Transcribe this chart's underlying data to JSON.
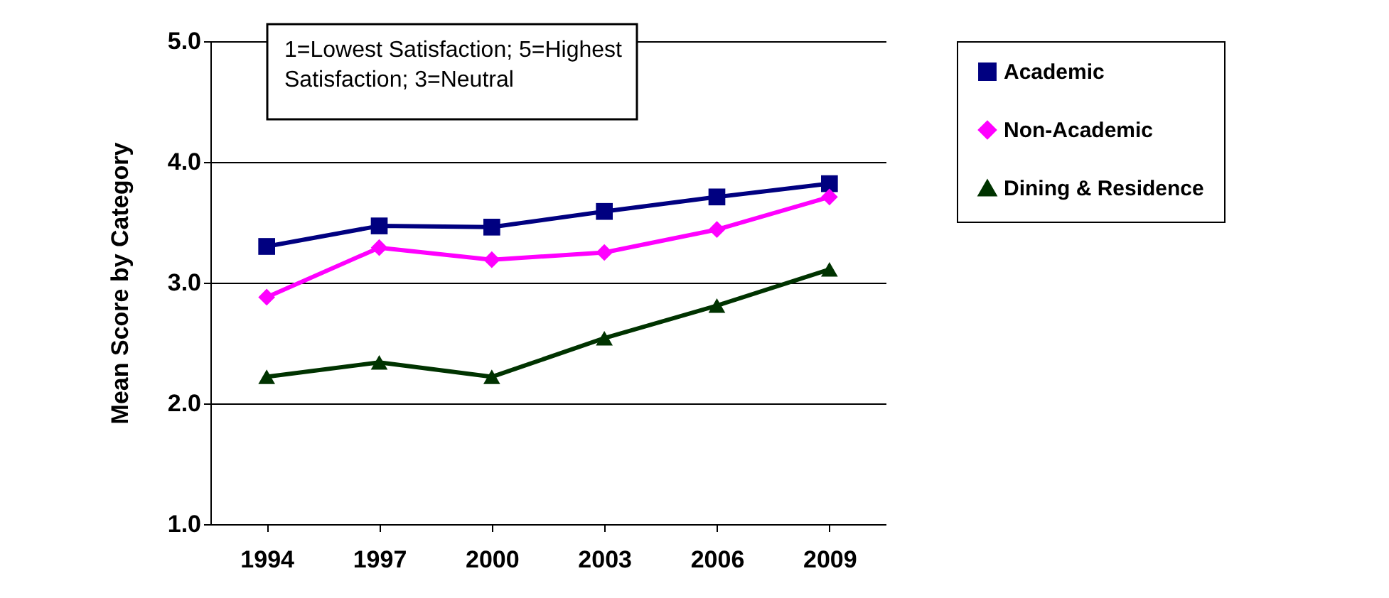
{
  "chart_data": {
    "type": "line",
    "ylabel": "Mean Score by Category",
    "categories": [
      "1994",
      "1997",
      "2000",
      "2003",
      "2006",
      "2009"
    ],
    "series": [
      {
        "name": "Academic",
        "color": "#000080",
        "marker": "square",
        "values": [
          3.3,
          3.47,
          3.46,
          3.59,
          3.71,
          3.82
        ]
      },
      {
        "name": "Non-Academic",
        "color": "#ff00ff",
        "marker": "diamond",
        "values": [
          2.88,
          3.29,
          3.19,
          3.25,
          3.44,
          3.71
        ]
      },
      {
        "name": "Dining & Residence",
        "color": "#003300",
        "marker": "triangle",
        "values": [
          2.22,
          2.34,
          2.22,
          2.54,
          2.81,
          3.11
        ]
      }
    ],
    "ylim": [
      1.0,
      5.0
    ],
    "yticks": [
      {
        "value": 1,
        "label": "1.0"
      },
      {
        "value": 2,
        "label": "2.0"
      },
      {
        "value": 3,
        "label": "3.0"
      },
      {
        "value": 4,
        "label": "4.0"
      },
      {
        "value": 5,
        "label": "5.0"
      }
    ],
    "grid": "y",
    "legend": "right",
    "line_style": "solid",
    "annotations": [
      "1=Lowest Satisfaction; 5=Highest Satisfaction; 3=Neutral"
    ]
  }
}
